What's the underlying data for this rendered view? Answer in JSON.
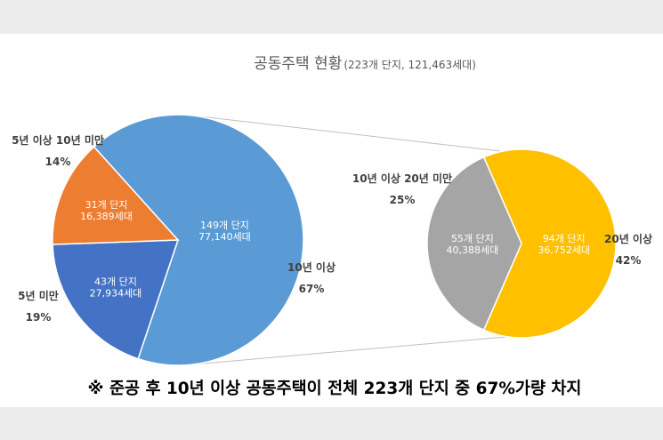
{
  "chart_data": {
    "type": "pie-of-pie",
    "title": "공동주택 현황",
    "subtitle": "(223개 단지, 121,463세대)",
    "colors": {
      "ten_plus": "#5b9bd5",
      "five_to_ten": "#ed7d31",
      "under_five": "#4472c4",
      "ten_to_twenty": "#a5a5a5",
      "twenty_plus": "#ffc000",
      "connector": "#bfbfbf"
    },
    "main": {
      "slices": [
        {
          "key": "ten_plus",
          "category": "10년 이상",
          "percent_label": "67%",
          "units": "149개 단지",
          "households": "77,140세대",
          "complexes": 149
        },
        {
          "key": "under_five",
          "category": "5년 미만",
          "percent_label": "19%",
          "units": "43개 단지",
          "households": "27,934세대",
          "complexes": 43
        },
        {
          "key": "five_to_ten",
          "category": "5년 이상 10년 미만",
          "percent_label": "14%",
          "units": "31개 단지",
          "households": "16,389세대",
          "complexes": 31
        }
      ]
    },
    "secondary": {
      "parent": "10년 이상",
      "slices": [
        {
          "key": "twenty_plus",
          "category": "20년 이상",
          "percent_label": "42%",
          "units": "94개 단지",
          "households": "36,752세대",
          "complexes": 94
        },
        {
          "key": "ten_to_twenty",
          "category": "10년 이상 20년 미만",
          "percent_label": "25%",
          "units": "55개 단지",
          "households": "40,388세대",
          "complexes": 55
        }
      ]
    }
  },
  "footnote": "※ 준공 후 10년 이상 공동주택이 전체 223개 단지 중 67%가량 차지"
}
